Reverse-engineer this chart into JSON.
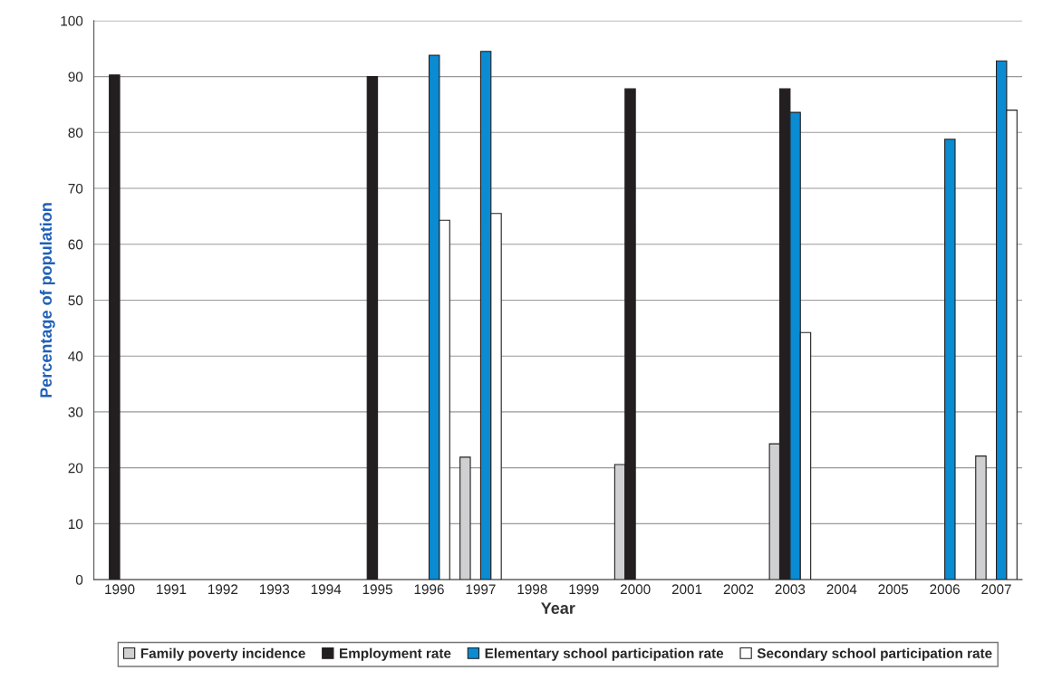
{
  "chart_data": {
    "type": "bar",
    "xlabel": "Year",
    "ylabel": "Percentage of population",
    "categories": [
      "1990",
      "1991",
      "1992",
      "1993",
      "1994",
      "1995",
      "1996",
      "1997",
      "1998",
      "1999",
      "2000",
      "2001",
      "2002",
      "2003",
      "2004",
      "2005",
      "2006",
      "2007"
    ],
    "series": [
      {
        "name": "Family poverty incidence",
        "color": "#d0d0d2",
        "values": [
          null,
          null,
          null,
          null,
          null,
          null,
          null,
          21.9,
          null,
          null,
          20.6,
          null,
          null,
          24.3,
          null,
          null,
          null,
          22.1
        ]
      },
      {
        "name": "Employment rate",
        "color": "#231f20",
        "values": [
          90.3,
          null,
          null,
          null,
          null,
          90.0,
          null,
          null,
          null,
          null,
          87.8,
          null,
          null,
          87.8,
          null,
          null,
          null,
          null
        ]
      },
      {
        "name": "Elementary school participation rate",
        "color": "#0a8bd2",
        "values": [
          null,
          null,
          null,
          null,
          null,
          null,
          93.8,
          94.5,
          null,
          null,
          null,
          null,
          null,
          83.6,
          null,
          null,
          78.8,
          92.8
        ]
      },
      {
        "name": "Secondary school participation rate",
        "color": "#ffffff",
        "values": [
          null,
          null,
          null,
          null,
          null,
          null,
          64.3,
          65.5,
          null,
          null,
          null,
          null,
          null,
          44.2,
          null,
          null,
          null,
          84.0
        ]
      }
    ],
    "ylim": [
      0,
      100
    ],
    "yticks": [
      0,
      10,
      20,
      30,
      40,
      50,
      60,
      70,
      80,
      90,
      100
    ],
    "grid": "y",
    "legend": "bottom"
  }
}
